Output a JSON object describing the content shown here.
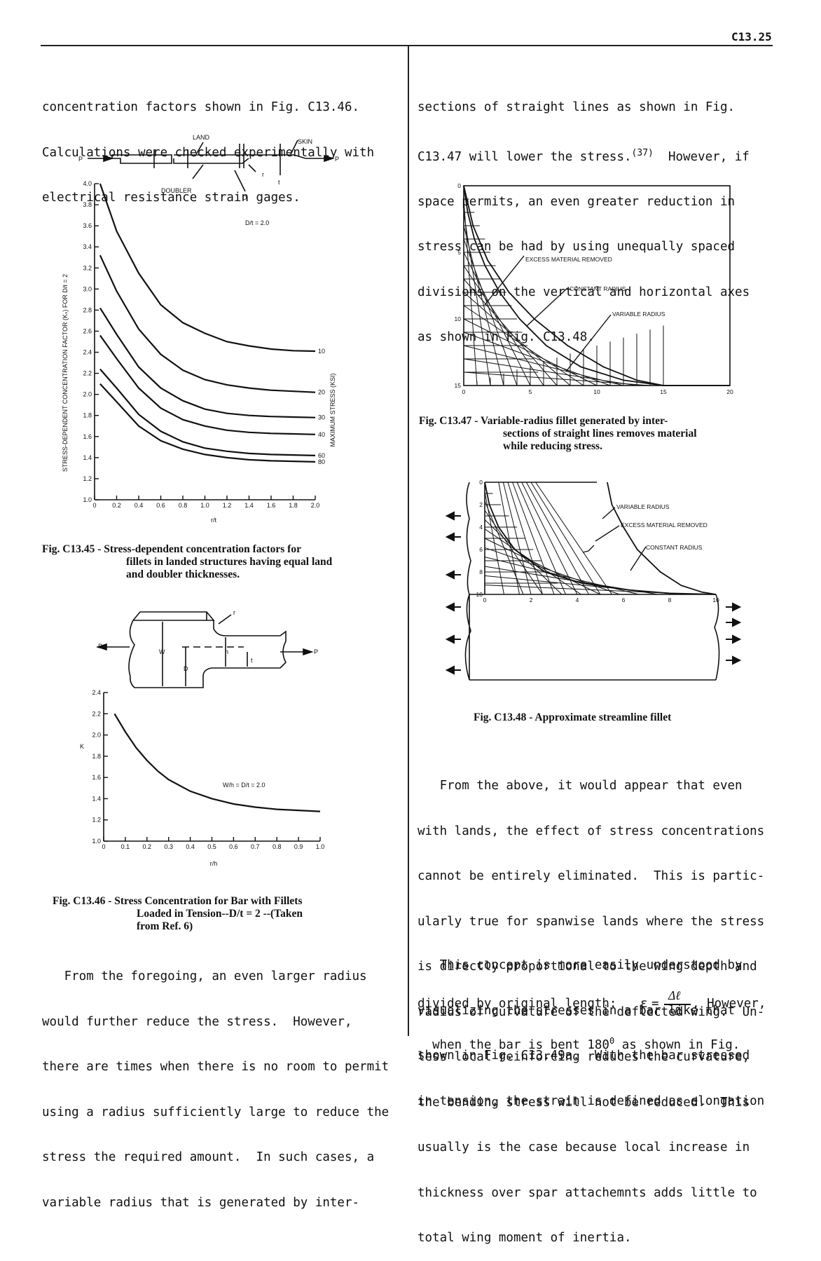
{
  "header": {
    "page_number": "C13.25"
  },
  "left_column": {
    "intro_lines": [
      "concentration factors shown in Fig. C13.46.",
      "Calculations were checked experimentally with",
      "electrical resistance strain gages."
    ],
    "fig45": {
      "caption_label": "Fig. C13.45 - ",
      "caption_lines": [
        "Stress-dependent concentration factors for",
        "fillets in landed structures having equal land",
        "and doubler thicknesses."
      ],
      "labels": {
        "land": "LAND",
        "skin": "SKIN",
        "doubler": "DOUBLER",
        "d": "D",
        "r": "r",
        "t": "t",
        "p": "P",
        "ratio": "D/t = 2.0",
        "y_axis": "STRESS-DEPENDENT CONCENTRATION FACTOR (Kₛ) FOR D/t = 2",
        "right_axis": "MAXIMUM STRESS (KSI)",
        "x_axis": "r/t"
      }
    },
    "fig46": {
      "caption_label": "Fig. C13.46 - ",
      "caption_lines": [
        "Stress Concentration for Bar with Fillets",
        "Loaded in Tension--D/t = 2 --(Taken",
        "from Ref. 6)"
      ],
      "labels": {
        "p": "P",
        "w": "W",
        "h": "h",
        "d": "D",
        "t": "t",
        "r": "r",
        "k": "K",
        "ratio": "W/h = D/t = 2.0",
        "x_axis": "r/h"
      }
    },
    "closing_lines": [
      "   From the foregoing, an even larger radius",
      "would further reduce the stress.  However,",
      "there are times when there is no room to permit",
      "using a radius sufficiently large to reduce the",
      "stress the required amount.  In such cases, a",
      "variable radius that is generated by inter-"
    ]
  },
  "right_column": {
    "intro_lines": [
      "sections of straight lines as shown in Fig.",
      "C13.47 will lower the stress.",
      "space permits, an even greater reduction in",
      "stress can be had by using unequally spaced",
      "divisions on the vertical and horizontal axes",
      "as shown in Fig. C13.48."
    ],
    "ref_superscript": "(37)",
    "ref_tail": "However, if",
    "fig47": {
      "caption_label": "Fig. C13.47 - ",
      "caption_lines": [
        "Variable-radius fillet generated by inter-",
        "sections of straight lines removes material",
        "while reducing stress."
      ],
      "labels": {
        "excess": "EXCESS MATERIAL REMOVED",
        "constant": "CONSTANT RADIUS",
        "variable": "VARIABLE RADIUS"
      }
    },
    "fig48": {
      "caption": "Fig. C13.48 - Approximate streamline fillet",
      "labels": {
        "variable": "VARIABLE RADIUS",
        "excess": "EXCESS MATERIAL REMOVED",
        "constant": "CONSTANT RADIUS"
      }
    },
    "para2_lines": [
      "   From the above, it would appear that even",
      "with lands, the effect of stress concentrations",
      "cannot be entirely eliminated.  This is partic-",
      "ularly true for spanwise lands where the stress",
      "is directly proportional to the wing depth and",
      "radius of curvature of the deflected wing.  Un-",
      "less local reinforcing reduces the curvature,",
      "the bending stress will not be reduced.  This",
      "usually is the case because local increase in",
      "thickness over spar attachemnts adds little to",
      "total wing moment of inertia."
    ],
    "para3_lines": [
      "   This concept is more easily understood by",
      "visualizing the stresses in a bar like that",
      "shown in Fig. C13.49a.  With the bar stressed",
      "in tension, the strain is defined as elongation"
    ],
    "formula_lead": "divided by original length:",
    "formula_eps": "ε",
    "formula_num": "Δℓ",
    "formula_den": "ℓ",
    "formula_tail": ", However,",
    "last_line_a": "when the bar is bent 180",
    "last_line_sup": "0",
    "last_line_b": " as shown in Fig."
  },
  "chart_data": [
    {
      "type": "line",
      "title": "",
      "xlabel": "r/t",
      "ylabel": "STRESS-DEPENDENT CONCENTRATION FACTOR (Kₛ) FOR D/t = 2",
      "xlim": [
        0,
        2.0
      ],
      "ylim": [
        1.0,
        4.0
      ],
      "x_ticks": [
        "0",
        "0.2",
        "0.4",
        "0.6",
        "0.8",
        "1.0",
        "1.2",
        "1.4",
        "1.6",
        "1.8",
        "2.0"
      ],
      "y_ticks": [
        "1.0",
        "1.2",
        "1.4",
        "1.6",
        "1.8",
        "2.0",
        "2.2",
        "2.4",
        "2.6",
        "2.8",
        "3.0",
        "3.2",
        "3.4",
        "3.6",
        "3.8",
        "4.0"
      ],
      "series": [
        {
          "name": "10",
          "points": [
            [
              0.05,
              4.0
            ],
            [
              0.2,
              3.55
            ],
            [
              0.4,
              3.15
            ],
            [
              0.6,
              2.85
            ],
            [
              0.8,
              2.68
            ],
            [
              1.0,
              2.58
            ],
            [
              1.2,
              2.5
            ],
            [
              1.4,
              2.46
            ],
            [
              1.6,
              2.43
            ],
            [
              1.8,
              2.415
            ],
            [
              2.0,
              2.41
            ]
          ]
        },
        {
          "name": "20",
          "points": [
            [
              0.05,
              3.32
            ],
            [
              0.2,
              2.98
            ],
            [
              0.4,
              2.62
            ],
            [
              0.6,
              2.38
            ],
            [
              0.8,
              2.23
            ],
            [
              1.0,
              2.14
            ],
            [
              1.2,
              2.09
            ],
            [
              1.4,
              2.06
            ],
            [
              1.6,
              2.04
            ],
            [
              1.8,
              2.03
            ],
            [
              2.0,
              2.02
            ]
          ]
        },
        {
          "name": "30",
          "points": [
            [
              0.05,
              2.82
            ],
            [
              0.2,
              2.57
            ],
            [
              0.4,
              2.26
            ],
            [
              0.6,
              2.06
            ],
            [
              0.8,
              1.94
            ],
            [
              1.0,
              1.86
            ],
            [
              1.2,
              1.82
            ],
            [
              1.4,
              1.8
            ],
            [
              1.6,
              1.79
            ],
            [
              1.8,
              1.785
            ],
            [
              2.0,
              1.78
            ]
          ]
        },
        {
          "name": "40",
          "points": [
            [
              0.05,
              2.56
            ],
            [
              0.2,
              2.34
            ],
            [
              0.4,
              2.06
            ],
            [
              0.6,
              1.87
            ],
            [
              0.8,
              1.76
            ],
            [
              1.0,
              1.7
            ],
            [
              1.2,
              1.66
            ],
            [
              1.4,
              1.64
            ],
            [
              1.6,
              1.63
            ],
            [
              1.8,
              1.625
            ],
            [
              2.0,
              1.62
            ]
          ]
        },
        {
          "name": "60",
          "points": [
            [
              0.05,
              2.24
            ],
            [
              0.2,
              2.06
            ],
            [
              0.4,
              1.81
            ],
            [
              0.6,
              1.65
            ],
            [
              0.8,
              1.55
            ],
            [
              1.0,
              1.49
            ],
            [
              1.2,
              1.46
            ],
            [
              1.4,
              1.44
            ],
            [
              1.6,
              1.43
            ],
            [
              1.8,
              1.425
            ],
            [
              2.0,
              1.42
            ]
          ]
        },
        {
          "name": "80",
          "points": [
            [
              0.05,
              2.1
            ],
            [
              0.2,
              1.93
            ],
            [
              0.4,
              1.7
            ],
            [
              0.6,
              1.56
            ],
            [
              0.8,
              1.48
            ],
            [
              1.0,
              1.43
            ],
            [
              1.2,
              1.4
            ],
            [
              1.4,
              1.38
            ],
            [
              1.6,
              1.37
            ],
            [
              1.8,
              1.365
            ],
            [
              2.0,
              1.36
            ]
          ]
        }
      ]
    },
    {
      "type": "line",
      "title": "",
      "xlabel": "r/h",
      "ylabel": "K",
      "xlim": [
        0,
        1.0
      ],
      "ylim": [
        1.0,
        2.4
      ],
      "x_ticks": [
        "0",
        "0.1",
        "0.2",
        "0.3",
        "0.4",
        "0.5",
        "0.6",
        "0.7",
        "0.8",
        "0.9",
        "1.0"
      ],
      "y_ticks": [
        "1.0",
        "1.2",
        "1.4",
        "1.6",
        "1.8",
        "2.0",
        "2.2",
        "2.4"
      ],
      "series": [
        {
          "name": "",
          "points": [
            [
              0.05,
              2.2
            ],
            [
              0.1,
              2.03
            ],
            [
              0.15,
              1.88
            ],
            [
              0.2,
              1.76
            ],
            [
              0.25,
              1.66
            ],
            [
              0.3,
              1.58
            ],
            [
              0.4,
              1.47
            ],
            [
              0.5,
              1.4
            ],
            [
              0.6,
              1.35
            ],
            [
              0.7,
              1.32
            ],
            [
              0.8,
              1.3
            ],
            [
              0.9,
              1.29
            ],
            [
              1.0,
              1.28
            ]
          ]
        }
      ]
    },
    {
      "type": "line",
      "title": "",
      "x_ticks": [
        "0",
        "5",
        "10",
        "15",
        "20"
      ],
      "y_ticks": [
        "0",
        "5",
        "10",
        "15"
      ],
      "xlim": [
        0,
        20
      ],
      "ylim": [
        0,
        15
      ],
      "series": [
        {
          "name": "",
          "points": [
            [
              0,
              0
            ],
            [
              0.3,
              2
            ],
            [
              0.8,
              4
            ],
            [
              1.6,
              6
            ],
            [
              2.7,
              8
            ],
            [
              4.2,
              10
            ],
            [
              6.2,
              12
            ],
            [
              8.8,
              13.6
            ],
            [
              12,
              14.6
            ],
            [
              15,
              15
            ],
            [
              20,
              15
            ]
          ]
        },
        {
          "name": "",
          "points": [
            [
              0,
              0
            ],
            [
              0.7,
              3
            ],
            [
              1.8,
              5.6
            ],
            [
              3.4,
              8
            ],
            [
              5.3,
              10
            ],
            [
              7.8,
              12
            ],
            [
              10.5,
              13.6
            ],
            [
              13,
              14.6
            ],
            [
              15,
              15
            ],
            [
              20,
              15
            ]
          ]
        }
      ]
    },
    {
      "type": "line",
      "title": "",
      "x_ticks": [
        "0",
        "2",
        "4",
        "6",
        "8",
        "10"
      ],
      "y_ticks": [
        "0",
        "2",
        "4",
        "6",
        "8",
        "10"
      ],
      "xlim": [
        0,
        10
      ],
      "ylim": [
        0,
        10
      ],
      "series": [
        {
          "name": "",
          "points": [
            [
              0,
              0
            ],
            [
              0.2,
              2
            ],
            [
              0.6,
              4
            ],
            [
              1.3,
              6
            ],
            [
              2.6,
              8
            ],
            [
              4.2,
              9
            ],
            [
              6.2,
              9.6
            ],
            [
              8,
              9.9
            ],
            [
              10,
              10
            ]
          ]
        },
        {
          "name": "",
          "points": [
            [
              5.3,
              0
            ],
            [
              5.5,
              2
            ],
            [
              6,
              4
            ],
            [
              6.6,
              6
            ],
            [
              7.6,
              8
            ],
            [
              8.5,
              9.2
            ],
            [
              9.4,
              9.8
            ],
            [
              10,
              10
            ]
          ]
        }
      ]
    }
  ]
}
